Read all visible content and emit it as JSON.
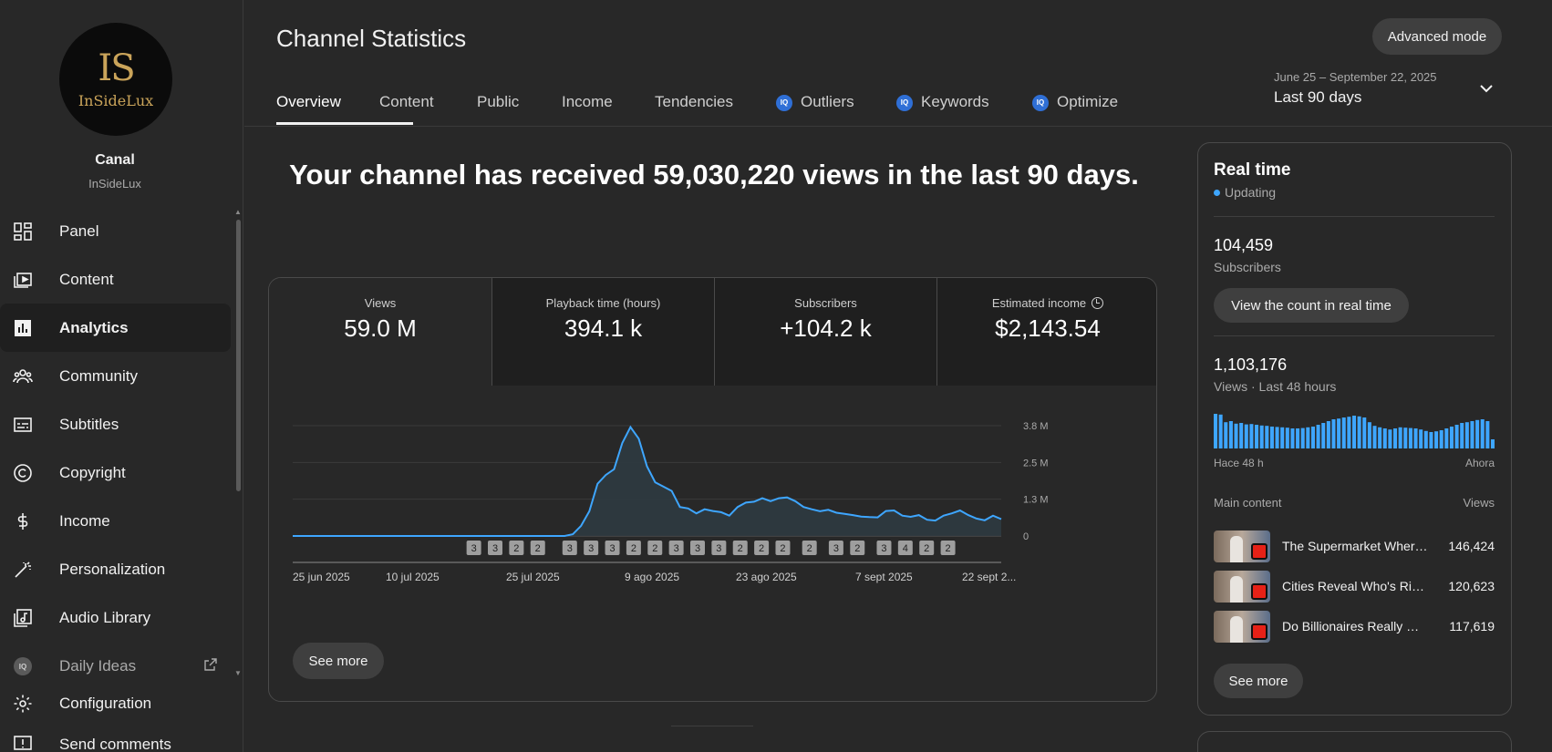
{
  "channel": {
    "logo_monogram": "IS",
    "logo_name": "InSideLux",
    "name": "Canal",
    "handle": "InSideLux"
  },
  "sidebar": {
    "items": [
      {
        "label": "Panel",
        "icon": "dashboard-icon"
      },
      {
        "label": "Content",
        "icon": "content-icon"
      },
      {
        "label": "Analytics",
        "icon": "analytics-icon",
        "active": true
      },
      {
        "label": "Community",
        "icon": "community-icon"
      },
      {
        "label": "Subtitles",
        "icon": "subtitles-icon"
      },
      {
        "label": "Copyright",
        "icon": "copyright-icon"
      },
      {
        "label": "Income",
        "icon": "dollar-icon"
      },
      {
        "label": "Personalization",
        "icon": "magic-wand-icon"
      },
      {
        "label": "Audio Library",
        "icon": "audio-library-icon"
      },
      {
        "label": "Daily Ideas",
        "icon": "iq-badge-icon"
      },
      {
        "label": "Configuration",
        "icon": "gear-icon"
      },
      {
        "label": "Send comments",
        "icon": "feedback-icon"
      }
    ]
  },
  "header": {
    "title": "Channel Statistics",
    "advanced_button": "Advanced mode",
    "tabs": [
      {
        "label": "Overview",
        "active": true
      },
      {
        "label": "Content"
      },
      {
        "label": "Public"
      },
      {
        "label": "Income"
      },
      {
        "label": "Tendencies"
      },
      {
        "label": "Outliers",
        "badge": "IQ"
      },
      {
        "label": "Keywords",
        "badge": "IQ"
      },
      {
        "label": "Optimize",
        "badge": "IQ"
      }
    ],
    "date_range": "June 25 – September 22, 2025",
    "date_label": "Last 90 days"
  },
  "main": {
    "headline": "Your channel has received 59,030,220 views in the last 90 days.",
    "metrics": [
      {
        "label": "Views",
        "value": "59.0 M"
      },
      {
        "label": "Playback time (hours)",
        "value": "394.1 k"
      },
      {
        "label": "Subscribers",
        "value": "+104.2 k"
      },
      {
        "label": "Estimated income",
        "value": "$2,143.54"
      }
    ],
    "see_more": "See more"
  },
  "chart_data": {
    "type": "area",
    "title": "",
    "xlabel": "",
    "ylabel": "",
    "x_ticks": [
      "25 jun 2025",
      "10 jul 2025",
      "25 jul 2025",
      "9 ago 2025",
      "23 ago 2025",
      "7 sept 2025",
      "22 sept 2..."
    ],
    "y_ticks": [
      "3.8 M",
      "2.5 M",
      "1.3 M",
      "0"
    ],
    "ylim": [
      0,
      3800000
    ],
    "series_color": "#3ea6ff",
    "values": [
      0,
      0,
      0,
      0,
      0,
      0,
      0,
      0,
      0,
      0,
      0,
      0,
      0,
      0,
      0,
      0,
      0,
      0,
      0,
      0,
      0,
      0,
      0,
      0,
      0,
      0,
      0,
      0,
      0,
      0,
      0,
      0,
      0,
      0,
      60000,
      350000,
      850000,
      1800000,
      2100000,
      2300000,
      3200000,
      3750000,
      3350000,
      2400000,
      1850000,
      1700000,
      1550000,
      1000000,
      950000,
      780000,
      920000,
      860000,
      820000,
      700000,
      1000000,
      1150000,
      1180000,
      1300000,
      1200000,
      1300000,
      1330000,
      1200000,
      1000000,
      920000,
      850000,
      900000,
      800000,
      760000,
      720000,
      670000,
      650000,
      640000,
      860000,
      880000,
      700000,
      660000,
      720000,
      560000,
      530000,
      700000,
      780000,
      880000,
      720000,
      600000,
      540000,
      700000,
      580000
    ],
    "markers": [
      {
        "index": 34,
        "label": "3"
      },
      {
        "index": 38,
        "label": "3"
      },
      {
        "index": 42,
        "label": "2"
      },
      {
        "index": 46,
        "label": "2"
      },
      {
        "index": 52,
        "label": "3"
      },
      {
        "index": 56,
        "label": "3"
      },
      {
        "index": 60,
        "label": "3"
      },
      {
        "index": 64,
        "label": "2"
      },
      {
        "index": 68,
        "label": "2"
      },
      {
        "index": 72,
        "label": "3"
      },
      {
        "index": 76,
        "label": "3"
      },
      {
        "index": 80,
        "label": "3"
      },
      {
        "index": 84,
        "label": "2"
      },
      {
        "index": 88,
        "label": "2"
      },
      {
        "index": 92,
        "label": "2"
      },
      {
        "index": 97,
        "label": "2"
      },
      {
        "index": 102,
        "label": "3"
      },
      {
        "index": 106,
        "label": "2"
      },
      {
        "index": 111,
        "label": "3"
      },
      {
        "index": 115,
        "label": "4"
      },
      {
        "index": 119,
        "label": "2"
      },
      {
        "index": 123,
        "label": "2"
      }
    ]
  },
  "realtime": {
    "title": "Real time",
    "status": "Updating",
    "subscribers_value": "104,459",
    "subscribers_label": "Subscribers",
    "realtime_button": "View the count in real time",
    "views_value": "1,103,176",
    "views_label": "Views · Last 48 hours",
    "axis_start": "Hace 48 h",
    "axis_end": "Ahora",
    "main_content_label": "Main content",
    "views_col_label": "Views",
    "videos": [
      {
        "title": "The Supermarket Where...",
        "views": "146,424"
      },
      {
        "title": "Cities Reveal Who's Richer...",
        "views": "120,623"
      },
      {
        "title": "Do Billionaires Really W...",
        "views": "117,619"
      }
    ],
    "see_more": "See more",
    "hourly_bars": [
      0.95,
      0.93,
      0.72,
      0.75,
      0.68,
      0.7,
      0.66,
      0.67,
      0.65,
      0.63,
      0.62,
      0.6,
      0.59,
      0.58,
      0.57,
      0.55,
      0.55,
      0.56,
      0.58,
      0.6,
      0.65,
      0.7,
      0.75,
      0.8,
      0.82,
      0.85,
      0.87,
      0.9,
      0.88,
      0.85,
      0.72,
      0.62,
      0.58,
      0.55,
      0.52,
      0.55,
      0.58,
      0.57,
      0.56,
      0.55,
      0.52,
      0.48,
      0.45,
      0.47,
      0.5,
      0.55,
      0.6,
      0.65,
      0.7,
      0.72,
      0.75,
      0.78,
      0.8,
      0.75,
      0.25
    ]
  }
}
